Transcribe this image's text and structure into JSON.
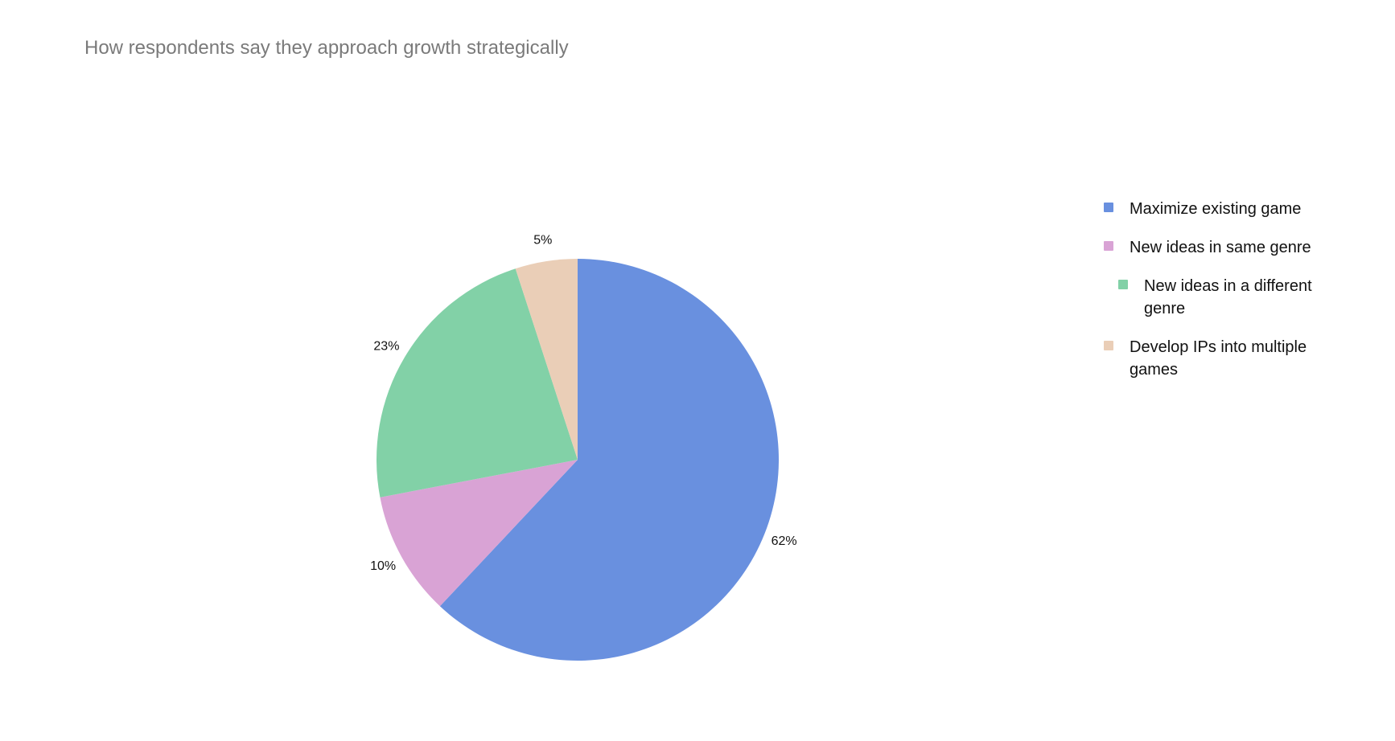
{
  "chart_data": {
    "type": "pie",
    "title": "How respondents say they approach growth strategically",
    "legend_position": "right",
    "start_angle": "top, clockwise",
    "slices": [
      {
        "label": "Maximize existing game",
        "value": 62,
        "value_label": "62%",
        "color": "#6990df"
      },
      {
        "label": "New ideas in same genre",
        "value": 10,
        "value_label": "10%",
        "color": "#d9a3d5"
      },
      {
        "label": "New ideas in a different genre",
        "value": 23,
        "value_label": "23%",
        "color": "#82d1a7"
      },
      {
        "label": "Develop IPs into multiple games",
        "value": 5,
        "value_label": "5%",
        "color": "#eaceb7"
      }
    ]
  }
}
